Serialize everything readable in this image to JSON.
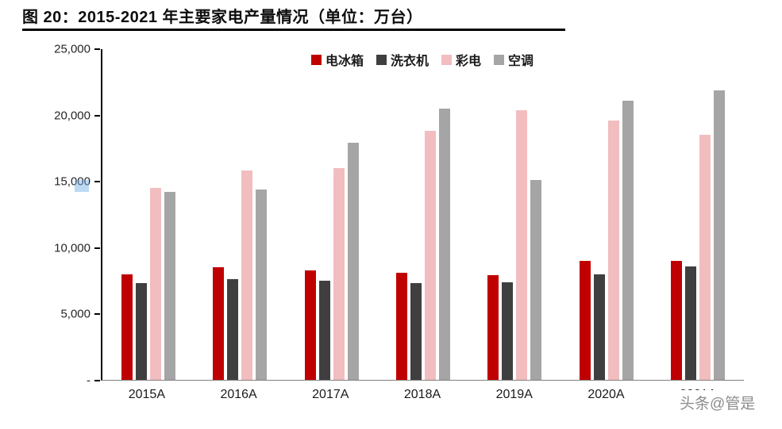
{
  "title": "图 20：2015-2021 年主要家电产量情况（单位：万台）",
  "watermark": "头条@管是",
  "chart_data": {
    "type": "bar",
    "title": "图 20：2015-2021 年主要家电产量情况（单位：万台）",
    "categories": [
      "2015A",
      "2016A",
      "2017A",
      "2018A",
      "2019A",
      "2020A",
      "2021A"
    ],
    "series": [
      {
        "name": "电冰箱",
        "color": "#C00000",
        "values": [
          8000,
          8500,
          8300,
          8100,
          7900,
          9000,
          9000
        ]
      },
      {
        "name": "洗衣机",
        "color": "#3F3F3F",
        "values": [
          7300,
          7600,
          7500,
          7300,
          7400,
          8000,
          8600
        ]
      },
      {
        "name": "彩电",
        "color": "#F2BDBF",
        "values": [
          14500,
          15800,
          16000,
          18800,
          20400,
          19600,
          18500
        ]
      },
      {
        "name": "空调",
        "color": "#A5A5A5",
        "values": [
          14200,
          14400,
          17900,
          20500,
          15100,
          21100,
          21900
        ]
      }
    ],
    "ylim": [
      0,
      25000
    ],
    "yticks": [
      {
        "label": "-",
        "value": 0
      },
      {
        "label": "5,000",
        "value": 5000
      },
      {
        "label": "10,000",
        "value": 10000
      },
      {
        "label": "15,000",
        "value": 15000
      },
      {
        "label": "20,000",
        "value": 20000
      },
      {
        "label": "25,000",
        "value": 25000
      }
    ],
    "legend_position": "top-center",
    "grid": false
  }
}
